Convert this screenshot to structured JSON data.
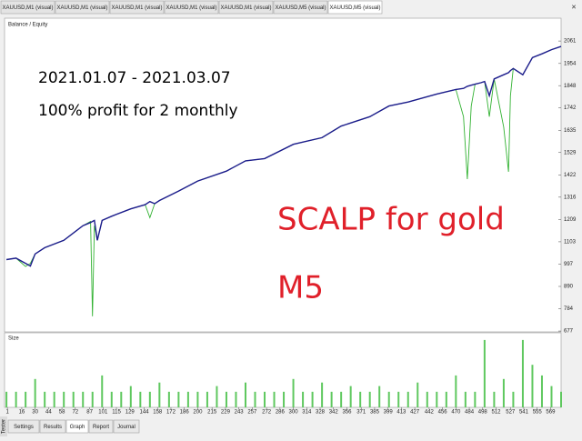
{
  "tabs": [
    "XAUUSD,M1 (visual)",
    "XAUUSD,M1 (visual)",
    "XAUUSD,M1 (visual)",
    "XAUUSD,M1 (visual)",
    "XAUUSD,M1 (visual)",
    "XAUUSD,M5 (visual)",
    "XAUUSD,M5 (visual)"
  ],
  "bottom_tabs": [
    "Settings",
    "Results",
    "Graph",
    "Report",
    "Journal"
  ],
  "side_label": "Tester",
  "chart_data": [
    {
      "type": "line",
      "title": "Balance / Equity",
      "annotations": [
        {
          "text": "2021.01.07 - 2021.03.07",
          "color": "#000000"
        },
        {
          "text": "100% profit for 2 monthly",
          "color": "#000000"
        },
        {
          "text": "SCALP for gold",
          "color": "#e0202a"
        },
        {
          "text": "M5",
          "color": "#e0202a"
        }
      ],
      "x": [
        0,
        10,
        20,
        25,
        30,
        40,
        60,
        80,
        88,
        90,
        92,
        95,
        100,
        110,
        130,
        145,
        150,
        155,
        160,
        180,
        200,
        230,
        250,
        270,
        300,
        330,
        350,
        380,
        400,
        420,
        450,
        470,
        478,
        482,
        486,
        490,
        496,
        500,
        505,
        510,
        520,
        525,
        527,
        530,
        540,
        550,
        560,
        570,
        580
      ],
      "series": [
        {
          "color": "#32b232",
          "values": [
            1018,
            1025,
            985,
            1000,
            1045,
            1075,
            1110,
            1180,
            1200,
            747,
            1180,
            1110,
            1205,
            1225,
            1260,
            1280,
            1218,
            1285,
            1300,
            1345,
            1393,
            1440,
            1489,
            1500,
            1568,
            1600,
            1655,
            1700,
            1751,
            1770,
            1808,
            1830,
            1700,
            1402,
            1750,
            1855,
            1862,
            1868,
            1700,
            1880,
            1650,
            1437,
            1800,
            1930,
            1900,
            1982,
            2000,
            2020,
            2035
          ]
        },
        {
          "color": "#1c1c8c",
          "values": [
            1018,
            1025,
            1000,
            987,
            1045,
            1075,
            1110,
            1180,
            1195,
            1200,
            1205,
            1110,
            1205,
            1225,
            1260,
            1280,
            1295,
            1285,
            1300,
            1345,
            1393,
            1440,
            1489,
            1500,
            1568,
            1600,
            1655,
            1700,
            1751,
            1770,
            1808,
            1830,
            1835,
            1845,
            1850,
            1855,
            1862,
            1868,
            1800,
            1880,
            1900,
            1910,
            1920,
            1930,
            1900,
            1982,
            2000,
            2020,
            2035
          ]
        }
      ],
      "xlim": [
        -2,
        580
      ],
      "ylim": [
        673,
        2170
      ],
      "yticks": [
        2061,
        1954,
        1848,
        1742,
        1635,
        1529,
        1422,
        1316,
        1209,
        1103,
        997,
        890,
        784,
        677
      ]
    },
    {
      "type": "bar",
      "title": "Size",
      "color": "#5fc85f",
      "x": [
        0,
        10,
        20,
        30,
        40,
        50,
        60,
        70,
        80,
        90,
        100,
        110,
        120,
        130,
        140,
        150,
        160,
        170,
        180,
        190,
        200,
        210,
        220,
        230,
        240,
        250,
        260,
        270,
        280,
        290,
        300,
        310,
        320,
        330,
        340,
        350,
        360,
        370,
        380,
        390,
        400,
        410,
        420,
        430,
        440,
        450,
        460,
        470,
        480,
        490,
        500,
        510,
        520,
        530,
        540,
        550,
        560,
        570,
        580
      ],
      "values": [
        0.22,
        0.22,
        0.22,
        0.4,
        0.22,
        0.22,
        0.22,
        0.22,
        0.22,
        0.22,
        0.45,
        0.22,
        0.22,
        0.3,
        0.22,
        0.22,
        0.35,
        0.22,
        0.22,
        0.22,
        0.22,
        0.22,
        0.3,
        0.22,
        0.22,
        0.35,
        0.22,
        0.22,
        0.22,
        0.22,
        0.4,
        0.22,
        0.22,
        0.35,
        0.22,
        0.22,
        0.3,
        0.22,
        0.22,
        0.3,
        0.22,
        0.22,
        0.22,
        0.35,
        0.22,
        0.22,
        0.22,
        0.45,
        0.22,
        0.22,
        0.95,
        0.22,
        0.4,
        0.22,
        0.95,
        0.6,
        0.45,
        0.3,
        0.22
      ],
      "xlim": [
        -2,
        580
      ],
      "ylim": [
        0,
        1
      ],
      "xticks": [
        1,
        16,
        30,
        44,
        58,
        72,
        87,
        101,
        115,
        129,
        144,
        158,
        172,
        186,
        200,
        215,
        229,
        243,
        257,
        272,
        286,
        300,
        314,
        328,
        342,
        356,
        371,
        385,
        399,
        413,
        427,
        442,
        456,
        470,
        484,
        498,
        512,
        527,
        541,
        555,
        569
      ]
    }
  ]
}
